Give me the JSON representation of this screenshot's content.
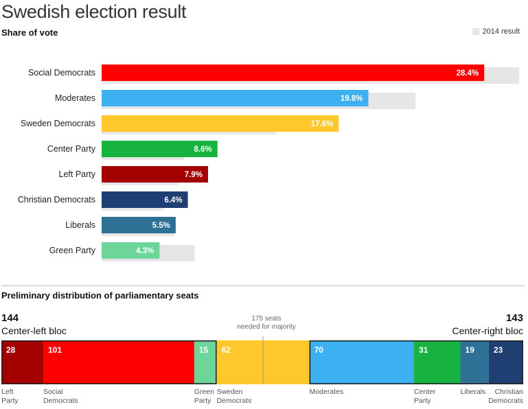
{
  "title": "Swedish election result",
  "subtitle": "Share of vote",
  "legend_label": "2014 result",
  "chart_data": [
    {
      "type": "bar",
      "orientation": "horizontal",
      "categories": [
        "Social Democrats",
        "Moderates",
        "Sweden Democrats",
        "Center Party",
        "Left Party",
        "Christian Democrats",
        "Liberals",
        "Green Party"
      ],
      "series": [
        {
          "name": "",
          "values": [
            28.4,
            19.8,
            17.6,
            8.6,
            7.9,
            6.4,
            5.5,
            4.3
          ],
          "labels": [
            "28.4%",
            "19.8%",
            "17.6%",
            "8.6%",
            "7.9%",
            "6.4%",
            "5.5%",
            "4.3%"
          ]
        },
        {
          "name": "2014 result",
          "values": [
            31.0,
            23.3,
            12.9,
            6.1,
            5.7,
            4.6,
            5.4,
            6.9
          ]
        }
      ],
      "colors": [
        "#ff0000",
        "#3cb0f0",
        "#fec72b",
        "#17b341",
        "#a30000",
        "#1f3f73",
        "#2f7097",
        "#6dd49a"
      ],
      "previous_color": "#e6e6e6",
      "xlim": [
        0,
        31.6
      ]
    },
    {
      "type": "bar",
      "orientation": "stacked-horizontal",
      "title": "Preliminary distribution of parliamentary seats",
      "total_seats": 349,
      "majority": 175,
      "segments": [
        {
          "party": "Left Party",
          "label": "Left\nParty",
          "seats": 28,
          "color": "#a30000"
        },
        {
          "party": "Social Democrats",
          "label": "Social\nDemocrats",
          "seats": 101,
          "color": "#ff0000"
        },
        {
          "party": "Green Party",
          "label": "Green\nParty",
          "seats": 15,
          "color": "#6dd49a"
        },
        {
          "party": "Sweden Democrats",
          "label": "Sweden\nDemocrats",
          "seats": 62,
          "color": "#fec72b"
        },
        {
          "party": "Moderates",
          "label": "Moderates",
          "seats": 70,
          "color": "#3cb0f0"
        },
        {
          "party": "Center Party",
          "label": "Center\nParty",
          "seats": 31,
          "color": "#17b341"
        },
        {
          "party": "Liberals",
          "label": "Liberals",
          "seats": 19,
          "color": "#2f7097"
        },
        {
          "party": "Christian Democrats",
          "label": "Christian\nDemocrats",
          "seats": 23,
          "color": "#1f3f73"
        }
      ],
      "blocs": [
        {
          "name": "Center-left bloc",
          "seats": "144",
          "side": "left"
        },
        {
          "name": "Center-right bloc",
          "seats": "143",
          "side": "right"
        }
      ],
      "majority_label": "175 seats\nneeded for majority"
    }
  ]
}
